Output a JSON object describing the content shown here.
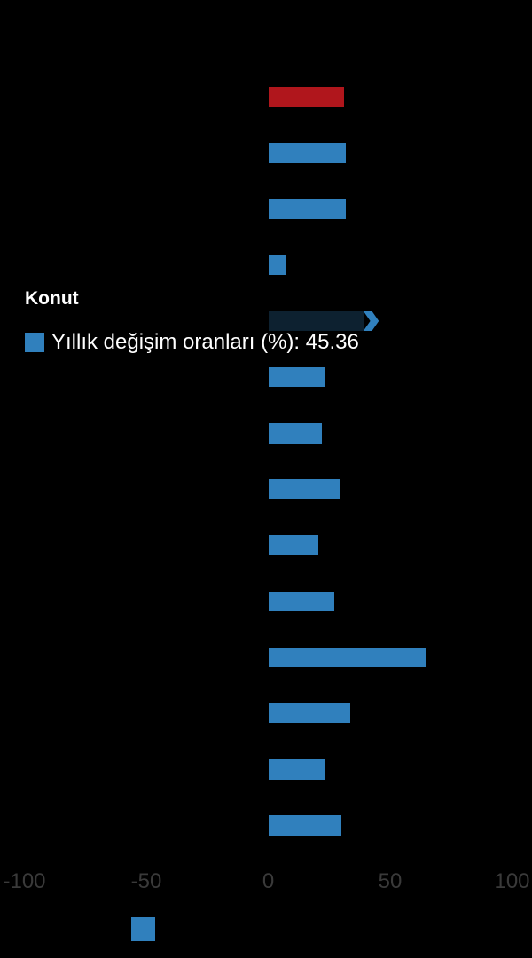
{
  "window": {
    "background": "#000000"
  },
  "tooltip": {
    "title": "Konut",
    "text": "Yıllık değişim oranları (%): 45.36",
    "series_label": "Yıllık değişim oranları (%)",
    "value": "45.36",
    "marker_color": "#3080bd",
    "text_color": "#ffffff"
  },
  "legend": {
    "marker_color": "#3080bd",
    "label": "",
    "position": "bottom-left"
  },
  "chart_data": {
    "type": "bar",
    "orientation": "horizontal",
    "series_name": "Yıllık değişim oranları (%)",
    "categories": [
      "",
      "",
      "",
      "",
      "Konut",
      "",
      "",
      "",
      "",
      "",
      "",
      "",
      "",
      ""
    ],
    "values": [
      31.2,
      31.7,
      31.7,
      7.5,
      45.36,
      23.5,
      21.9,
      29.6,
      20.5,
      27.0,
      64.9,
      33.6,
      23.5,
      30.0
    ],
    "x_ticks": [
      -100,
      -50,
      0,
      50,
      100
    ],
    "xlim": [
      -100,
      100
    ],
    "bar_color": "#3080bd",
    "highlight_index": 0,
    "highlight_color": "#b0161c",
    "hovered_index": 4,
    "hovered_value": 45.36,
    "hover_dim_color": "#0d2130",
    "axis_label_color": "#3a3a3a",
    "grid": false,
    "legend_position": "bottom-left"
  }
}
